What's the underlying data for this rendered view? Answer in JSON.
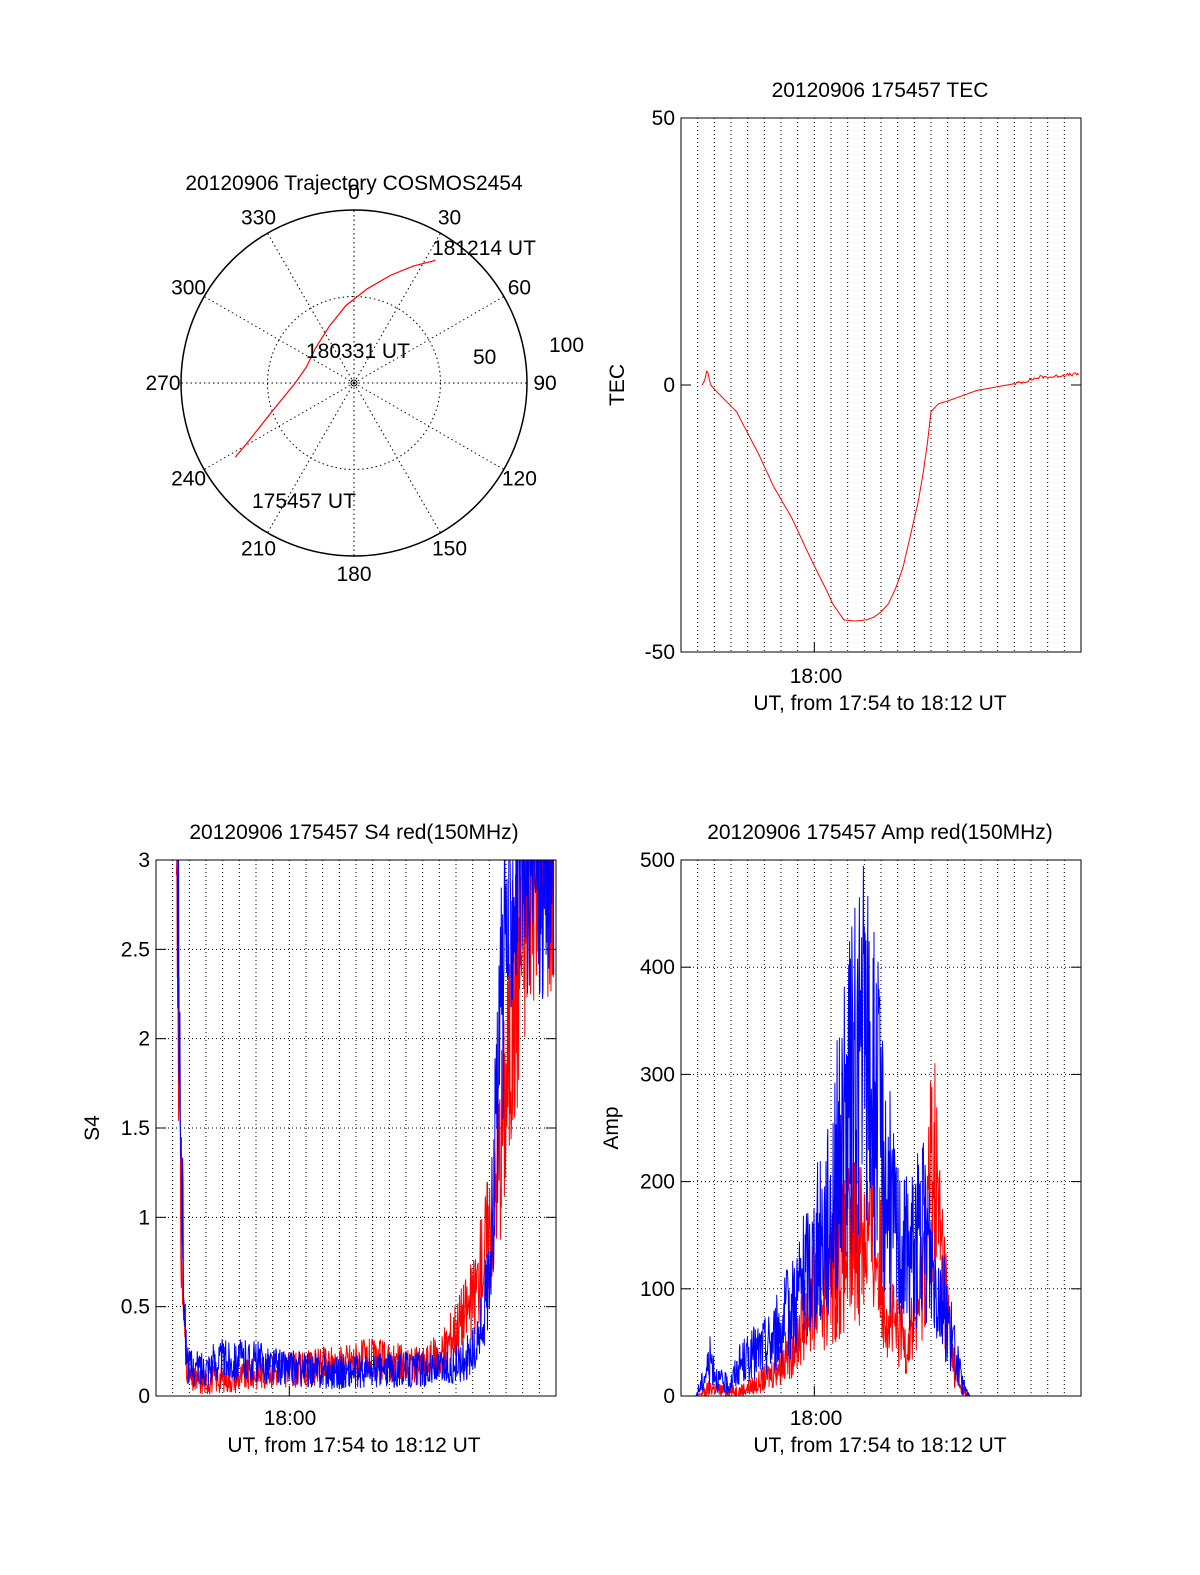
{
  "chart_data": [
    {
      "type": "polar",
      "title": "20120906 Trajectory COSMOS2454",
      "azimuth_labels": [
        "0",
        "30",
        "60",
        "90",
        "120",
        "150",
        "180",
        "210",
        "240",
        "270",
        "300",
        "330"
      ],
      "radial_labels": [
        "50",
        "100"
      ],
      "radial_range": [
        0,
        100
      ],
      "grid": true,
      "series": [
        {
          "color": "#ff0000",
          "points": [
            {
              "az": 238.0,
              "r": 81
            },
            {
              "az": 241.0,
              "r": 70
            },
            {
              "az": 245.0,
              "r": 60
            },
            {
              "az": 251.0,
              "r": 50
            },
            {
              "az": 258.0,
              "r": 42
            },
            {
              "az": 270.0,
              "r": 34
            },
            {
              "az": 289.0,
              "r": 29
            },
            {
              "az": 312.0,
              "r": 30
            },
            {
              "az": 337.0,
              "r": 36
            },
            {
              "az": 354.0,
              "r": 45
            },
            {
              "az": 8.0,
              "r": 55
            },
            {
              "az": 19.0,
              "r": 66
            },
            {
              "az": 27.0,
              "r": 76
            },
            {
              "az": 33.5,
              "r": 85
            }
          ]
        }
      ],
      "annotations": [
        "181214 UT",
        "180331 UT",
        "175457 UT"
      ]
    },
    {
      "type": "line",
      "title": "20120906 175457 TEC",
      "xlabel": "UT, from 17:54 to 18:12 UT",
      "ylabel": "TEC",
      "x_tick_label": "18:00",
      "xlim_seconds_after_1754": [
        0,
        1080
      ],
      "ylim": [
        -50,
        50
      ],
      "yticks": [
        "50",
        "0",
        "-50"
      ],
      "grid": "vertical dotted",
      "series": [
        {
          "color": "#ff0000",
          "x": [
            57,
            65,
            70,
            80,
            100,
            150,
            210,
            250,
            300,
            340,
            375,
            390,
            410,
            440,
            470,
            500,
            520,
            540,
            560,
            580,
            600,
            620,
            640,
            655,
            665,
            675,
            695,
            720,
            760,
            800,
            840,
            880,
            920,
            945,
            970,
            1000,
            1030,
            1060,
            1075
          ],
          "y": [
            0,
            1,
            3,
            0,
            -1.5,
            -5,
            -13,
            -19,
            -25,
            -31,
            -36,
            -38,
            -41,
            -44,
            -44.2,
            -44,
            -43.5,
            -42.5,
            -41,
            -38,
            -34,
            -28,
            -22,
            -16,
            -11,
            -5,
            -3.5,
            -3,
            -2,
            -1,
            -0.5,
            0,
            0.5,
            1,
            1.5,
            1.5,
            1.8,
            2,
            2
          ]
        }
      ]
    },
    {
      "type": "line",
      "title": "20120906 175457 S4 red(150MHz)",
      "xlabel": "UT, from 17:54 to 18:12 UT",
      "ylabel": "S4",
      "x_tick_label": "18:00",
      "xlim_seconds_after_1754": [
        0,
        1080
      ],
      "ylim": [
        0,
        3
      ],
      "yticks": [
        "0",
        "0.5",
        "1",
        "1.5",
        "2",
        "2.5",
        "3"
      ],
      "grid": "dotted",
      "series": [
        {
          "color": "#ff0000",
          "x": [
            55,
            60,
            65,
            70,
            80,
            90,
            100,
            130,
            170,
            210,
            260,
            300,
            350,
            400,
            460,
            500,
            540,
            600,
            660,
            720,
            780,
            800,
            830,
            860,
            880,
            900,
            910,
            920,
            940,
            960,
            990,
            1010,
            1040,
            1060,
            1075
          ],
          "y": [
            3.0,
            2.6,
            1.1,
            0.7,
            0.25,
            0.1,
            0.08,
            0.08,
            0.1,
            0.1,
            0.12,
            0.14,
            0.15,
            0.15,
            0.17,
            0.18,
            0.2,
            0.2,
            0.18,
            0.17,
            0.25,
            0.35,
            0.45,
            0.55,
            0.75,
            0.95,
            1.05,
            1.25,
            1.6,
            2.1,
            2.6,
            3.0,
            3.0,
            3.0,
            3.0
          ]
        },
        {
          "color": "#0000ff",
          "x": [
            55,
            60,
            65,
            70,
            80,
            90,
            100,
            130,
            170,
            210,
            260,
            300,
            350,
            400,
            460,
            500,
            540,
            600,
            660,
            720,
            780,
            800,
            830,
            860,
            880,
            900,
            910,
            920,
            940,
            960,
            990,
            1010,
            1040,
            1060,
            1075
          ],
          "y": [
            3.0,
            2.8,
            1.7,
            1.1,
            0.3,
            0.16,
            0.15,
            0.16,
            0.2,
            0.2,
            0.2,
            0.18,
            0.16,
            0.15,
            0.14,
            0.13,
            0.13,
            0.14,
            0.15,
            0.15,
            0.15,
            0.16,
            0.2,
            0.25,
            0.4,
            0.7,
            1.1,
            1.6,
            2.4,
            3.0,
            3.0,
            3.0,
            3.0,
            3.0,
            3.0
          ]
        }
      ]
    },
    {
      "type": "line",
      "title": "20120906 175457 Amp red(150MHz)",
      "xlabel": "UT, from 17:54 to 18:12 UT",
      "ylabel": "Amp",
      "x_tick_label": "18:00",
      "xlim_seconds_after_1754": [
        0,
        1080
      ],
      "ylim": [
        0,
        500
      ],
      "yticks": [
        "0",
        "100",
        "200",
        "300",
        "400",
        "500"
      ],
      "grid": "dotted",
      "series": [
        {
          "color": "#ff0000",
          "x": [
            40,
            60,
            80,
            100,
            130,
            160,
            200,
            240,
            280,
            320,
            360,
            400,
            430,
            460,
            490,
            520,
            540,
            560,
            580,
            610,
            640,
            660,
            680,
            700,
            720,
            740,
            760,
            780,
            800,
            1080
          ],
          "y": [
            0,
            3,
            8,
            6,
            4,
            5,
            10,
            20,
            35,
            60,
            90,
            110,
            125,
            140,
            160,
            150,
            120,
            80,
            60,
            50,
            80,
            140,
            230,
            150,
            80,
            20,
            5,
            0,
            0,
            0
          ]
        },
        {
          "color": "#0000ff",
          "x": [
            40,
            60,
            80,
            100,
            130,
            160,
            200,
            240,
            280,
            320,
            360,
            400,
            430,
            460,
            490,
            520,
            540,
            560,
            580,
            610,
            640,
            660,
            680,
            700,
            720,
            740,
            760,
            780,
            800,
            1080
          ],
          "y": [
            0,
            15,
            35,
            15,
            10,
            30,
            40,
            50,
            70,
            100,
            130,
            170,
            230,
            280,
            330,
            290,
            240,
            190,
            150,
            130,
            150,
            150,
            120,
            100,
            70,
            40,
            10,
            0,
            0,
            0
          ]
        }
      ]
    }
  ]
}
